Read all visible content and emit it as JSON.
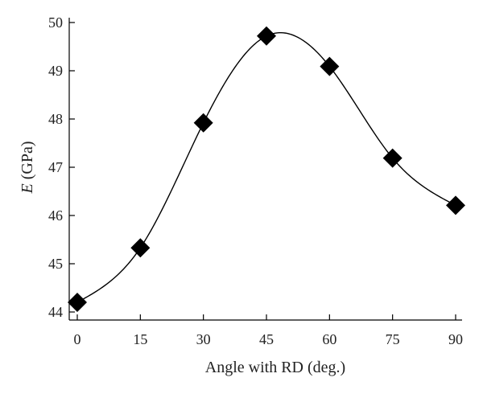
{
  "chart_data": {
    "type": "line",
    "xlabel": "Angle with RD (deg.)",
    "ylabel_italic": "E",
    "ylabel_rest": " (GPa)",
    "x": [
      0,
      15,
      30,
      45,
      60,
      75,
      90
    ],
    "series": [
      {
        "values": [
          44.2,
          45.33,
          47.92,
          49.72,
          49.09,
          47.19,
          46.21
        ],
        "marker": "diamond",
        "color": "#000000",
        "smooth": true
      }
    ],
    "xlim": [
      0,
      90
    ],
    "ylim": [
      44,
      50
    ],
    "xticks": [
      0,
      15,
      30,
      45,
      60,
      75,
      90
    ],
    "yticks": [
      44,
      45,
      46,
      47,
      48,
      49,
      50
    ],
    "grid": false,
    "legend": "none"
  }
}
